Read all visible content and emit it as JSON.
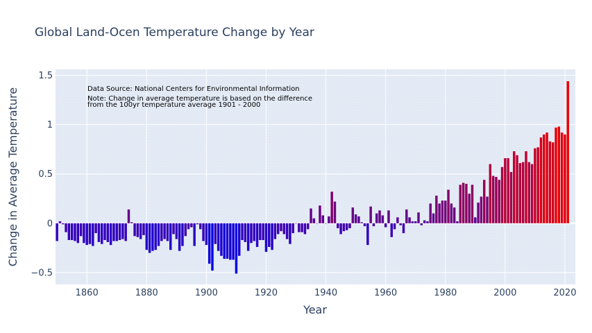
{
  "chart_data": {
    "type": "bar",
    "title": "Global Land-Ocen Temperature Change by Year",
    "xlabel": "Year",
    "ylabel": "Change in Average Temperature",
    "xlim": [
      1849.5,
      2023.5
    ],
    "ylim": [
      -0.62,
      1.56
    ],
    "xticks": [
      1860,
      1880,
      1900,
      1920,
      1940,
      1960,
      1980,
      2000,
      2020
    ],
    "xtick_labels": [
      "1860",
      "1880",
      "1900",
      "1920",
      "1940",
      "1960",
      "1980",
      "2000",
      "2020"
    ],
    "yticks": [
      -0.5,
      0,
      0.5,
      1,
      1.5
    ],
    "ytick_labels": [
      "−0.5",
      "0",
      "0.5",
      "1",
      "1.5"
    ],
    "grid": true,
    "color_scale": [
      "#0000ee",
      "#ee0000"
    ],
    "color_range": [
      -0.5,
      1.0
    ],
    "annotations": [
      "Data Source: National Centers for Environmental Information",
      "Note: Change in average temperature is based on the difference",
      "from the 100yr temperature average 1901 - 2000"
    ],
    "start_year": 1850,
    "values": [
      -0.18,
      0.02,
      -0.01,
      -0.09,
      -0.17,
      -0.17,
      -0.18,
      -0.2,
      -0.13,
      -0.2,
      -0.22,
      -0.21,
      -0.23,
      -0.1,
      -0.19,
      -0.21,
      -0.17,
      -0.19,
      -0.22,
      -0.18,
      -0.18,
      -0.17,
      -0.16,
      -0.18,
      0.14,
      0.01,
      -0.13,
      -0.14,
      -0.16,
      -0.12,
      -0.27,
      -0.3,
      -0.28,
      -0.27,
      -0.23,
      -0.18,
      -0.16,
      -0.18,
      -0.27,
      -0.11,
      -0.16,
      -0.28,
      -0.23,
      -0.13,
      -0.06,
      -0.04,
      -0.23,
      -0.01,
      -0.06,
      -0.18,
      -0.22,
      -0.41,
      -0.48,
      -0.21,
      -0.28,
      -0.33,
      -0.36,
      -0.36,
      -0.37,
      -0.37,
      -0.51,
      -0.33,
      -0.17,
      -0.19,
      -0.28,
      -0.2,
      -0.18,
      -0.24,
      -0.17,
      -0.17,
      -0.29,
      -0.24,
      -0.27,
      -0.16,
      -0.11,
      -0.08,
      -0.11,
      -0.16,
      -0.21,
      -0.1,
      0.0,
      -0.09,
      -0.09,
      -0.11,
      -0.06,
      0.15,
      0.05,
      0.0,
      0.18,
      0.08,
      0.0,
      0.07,
      0.32,
      0.22,
      -0.05,
      -0.11,
      -0.08,
      -0.07,
      -0.05,
      0.16,
      0.09,
      0.07,
      0.01,
      -0.03,
      -0.22,
      0.17,
      -0.03,
      0.1,
      0.13,
      0.08,
      -0.04,
      0.13,
      -0.14,
      -0.06,
      0.06,
      -0.02,
      -0.1,
      0.14,
      0.06,
      0.02,
      0.02,
      0.11,
      -0.02,
      0.03,
      0.02,
      0.2,
      0.1,
      0.28,
      0.2,
      0.23,
      0.23,
      0.34,
      0.2,
      0.16,
      0.02,
      0.39,
      0.41,
      0.4,
      0.3,
      0.39,
      0.06,
      0.21,
      0.27,
      0.44,
      0.27,
      0.6,
      0.48,
      0.47,
      0.44,
      0.57,
      0.66,
      0.66,
      0.52,
      0.73,
      0.69,
      0.61,
      0.62,
      0.73,
      0.62,
      0.6,
      0.76,
      0.77,
      0.87,
      0.9,
      0.92,
      0.83,
      0.82,
      0.97,
      0.98,
      0.92,
      0.9,
      1.44
    ]
  }
}
